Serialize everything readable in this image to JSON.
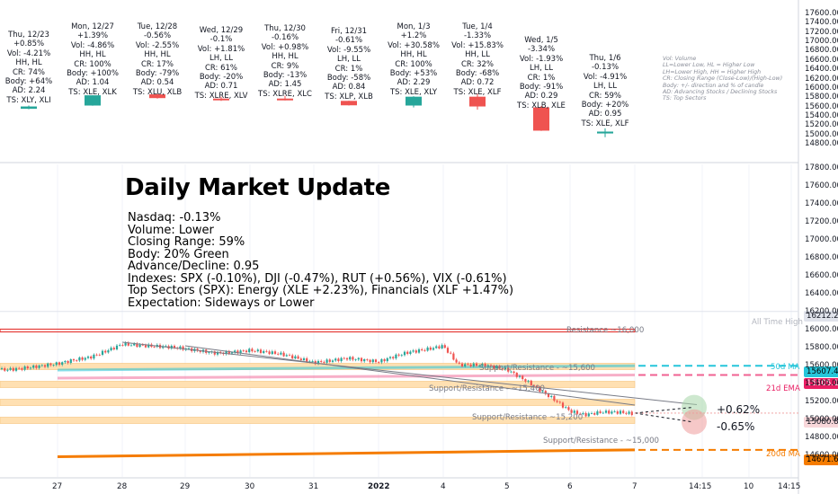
{
  "cards": [
    {
      "lines": [
        "Thu, 12/23",
        "+0.85%",
        "Vol: -4.21%",
        "HH, HL",
        "CR: 74%",
        "Body: +64%",
        "AD: 2.24",
        "TS: XLY, XLI"
      ]
    },
    {
      "lines": [
        "Mon, 12/27",
        "+1.39%",
        "Vol: -4.86%",
        "HH, HL",
        "CR: 100%",
        "Body: +100%",
        "AD: 1.04",
        "TS: XLE, XLK"
      ]
    },
    {
      "lines": [
        "Tue, 12/28",
        "-0.56%",
        "Vol: -2.55%",
        "HH, HL",
        "CR: 17%",
        "Body: -79%",
        "AD: 0.54",
        "TS: XLU, XLB"
      ]
    },
    {
      "lines": [
        "Wed, 12/29",
        "-0.1%",
        "Vol: +1.81%",
        "LH, LL",
        "CR: 61%",
        "Body: -20%",
        "AD: 0.71",
        "TS: XLRE, XLV"
      ]
    },
    {
      "lines": [
        "Thu, 12/30",
        "-0.16%",
        "Vol: +0.98%",
        "HH, HL",
        "CR: 9%",
        "Body: -13%",
        "AD: 1.45",
        "TS: XLRE, XLC"
      ]
    },
    {
      "lines": [
        "Fri, 12/31",
        "-0.61%",
        "Vol: -9.55%",
        "LH, LL",
        "CR: 1%",
        "Body: -58%",
        "AD: 0.84",
        "TS: XLP, XLB"
      ]
    },
    {
      "lines": [
        "Mon, 1/3",
        "+1.2%",
        "Vol: +30.58%",
        "HH, HL",
        "CR: 100%",
        "Body: +53%",
        "AD: 2.29",
        "TS: XLE, XLY"
      ]
    },
    {
      "lines": [
        "Tue, 1/4",
        "-1.33%",
        "Vol: +15.83%",
        "HH, LL",
        "CR: 32%",
        "Body: -68%",
        "AD: 0.72",
        "TS: XLE, XLF"
      ]
    },
    {
      "lines": [
        "Wed, 1/5",
        "-3.34%",
        "Vol: -1.93%",
        "LH, LL",
        "CR: 1%",
        "Body: -91%",
        "AD: 0.29",
        "TS: XLB, XLE"
      ]
    },
    {
      "lines": [
        "Thu, 1/6",
        "-0.13%",
        "Vol: -4.91%",
        "LH, LL",
        "CR: 59%",
        "Body: +20%",
        "AD: 0.95",
        "TS: XLE, XLF"
      ]
    }
  ],
  "legend_lines": [
    "Vol: Volume",
    "LL=Lower Low, HL = Higher Low",
    "LH=Lower High, HH = Higher High",
    "CR: Closing Range (Close-Low)/(High-Low)",
    "Body: +/- direction and % of candle",
    "AD: Advancing Stocks / Declining Stocks",
    "TS: Top Sectors"
  ],
  "title": "Daily Market Update",
  "summary_lines": [
    "Nasdaq: -0.13%",
    "Volume: Lower",
    "Closing Range: 59%",
    "Body: 20% Green",
    "Advance/Decline: 0.95",
    "Indexes: SPX (-0.10%), DJI (-0.47%), RUT (+0.56%), VIX (-0.61%)",
    "Top Sectors (SPX): Energy (XLE +2.23%), Financials (XLF +1.47%)",
    "Expectation: Sideways or Lower"
  ],
  "annotations": {
    "all_time_high": "All Time High",
    "resistance_16000": "Resistance ~16,000",
    "sr_15600": "Support/Resistance - ~15,600",
    "sr_15400": "Support/Resistance - ~15,400",
    "sr_15200": "Support/Resistance ~15,200",
    "sr_15000": "Support/Resistance - ~15,000",
    "ma50": "50d MA",
    "ema21": "21d EMA",
    "ma200": "200d MA",
    "up_target": "+0.62%",
    "down_target": "-0.65%"
  },
  "price_tags": {
    "ath": "16212.23",
    "ma50": "15607.40",
    "ema21": "15505.12",
    "last": "15080.86",
    "ma200": "14671.62"
  },
  "colors": {
    "up": "#26a69a",
    "down": "#ef5350",
    "ma50": "#26c6da",
    "ema21": "#f06292",
    "ma200": "#f57c00",
    "resistance": "#e53935",
    "zone": "#ffe0b2"
  },
  "chart_data": {
    "type": "candlestick",
    "upper_pane": {
      "y_ticks": [
        14800,
        15000,
        15200,
        15400,
        15600,
        15800,
        16000,
        16200,
        16400,
        16600,
        16800,
        17000,
        17200,
        17400,
        17600
      ],
      "daily_candles": [
        {
          "date": "Thu, 12/23",
          "open": 15570,
          "close": 15620,
          "high": 15640,
          "low": 15560,
          "direction": "up"
        },
        {
          "date": "Mon, 12/27",
          "open": 15640,
          "close": 15860,
          "high": 15860,
          "low": 15635,
          "direction": "up"
        },
        {
          "date": "Tue, 12/28",
          "open": 15880,
          "close": 15800,
          "high": 15890,
          "low": 15790,
          "direction": "down"
        },
        {
          "date": "Wed, 12/29",
          "open": 15790,
          "close": 15770,
          "high": 15830,
          "low": 15740,
          "direction": "down"
        },
        {
          "date": "Thu, 12/30",
          "open": 15790,
          "close": 15770,
          "high": 15850,
          "low": 15750,
          "direction": "down"
        },
        {
          "date": "Fri, 12/31",
          "open": 15740,
          "close": 15645,
          "high": 15745,
          "low": 15640,
          "direction": "down"
        },
        {
          "date": "Mon, 1/3",
          "open": 15640,
          "close": 15830,
          "high": 15840,
          "low": 15600,
          "direction": "up"
        },
        {
          "date": "Tue, 1/4",
          "open": 15830,
          "close": 15620,
          "high": 15900,
          "low": 15550,
          "direction": "down"
        },
        {
          "date": "Wed, 1/5",
          "open": 15600,
          "close": 15100,
          "high": 15630,
          "low": 15095,
          "direction": "down"
        },
        {
          "date": "Thu, 1/6",
          "open": 15040,
          "close": 15080,
          "high": 15150,
          "low": 14960,
          "direction": "up"
        }
      ]
    },
    "lower_pane": {
      "y_ticks": [
        14600,
        14800,
        15000,
        15200,
        15400,
        15600,
        15800,
        16000,
        16200,
        16400,
        16600,
        16800,
        17000,
        17200,
        17400,
        17600,
        17800
      ],
      "x_ticks": [
        "27",
        "28",
        "29",
        "30",
        "31",
        "2022",
        "4",
        "5",
        "6",
        "7",
        "14:15",
        "10",
        "14:15"
      ],
      "levels": {
        "all_time_high": 16212.23,
        "resistance": 16000,
        "support_resistance": [
          15600,
          15400,
          15200,
          15000
        ],
        "ma50": 15607.4,
        "ema21": 15505.12,
        "last": 15080.86,
        "ma200": 14671.62
      },
      "projection": {
        "up_percent": 0.62,
        "down_percent": -0.65
      }
    }
  }
}
